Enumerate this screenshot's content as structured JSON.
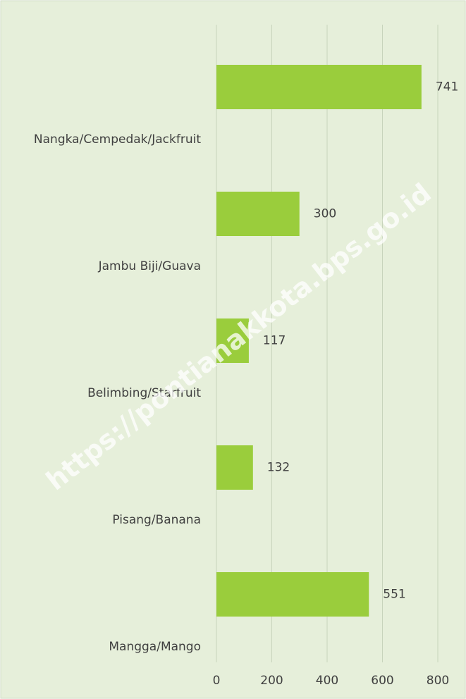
{
  "chart_data": {
    "type": "bar",
    "orientation": "horizontal",
    "categories": [
      "Nangka/Cempedak/Jackfruit",
      "Jambu Biji/Guava",
      "Belimbing/Starfruit",
      "Pisang/Banana",
      "Mangga/Mango"
    ],
    "values": [
      741,
      300,
      117,
      132,
      551
    ],
    "color": "#9acd3c",
    "xlim": [
      0,
      800
    ],
    "xticks": [
      0,
      200,
      400,
      600,
      800
    ],
    "grid": true,
    "watermark": "https://pontianakkota.bps.go.id"
  }
}
